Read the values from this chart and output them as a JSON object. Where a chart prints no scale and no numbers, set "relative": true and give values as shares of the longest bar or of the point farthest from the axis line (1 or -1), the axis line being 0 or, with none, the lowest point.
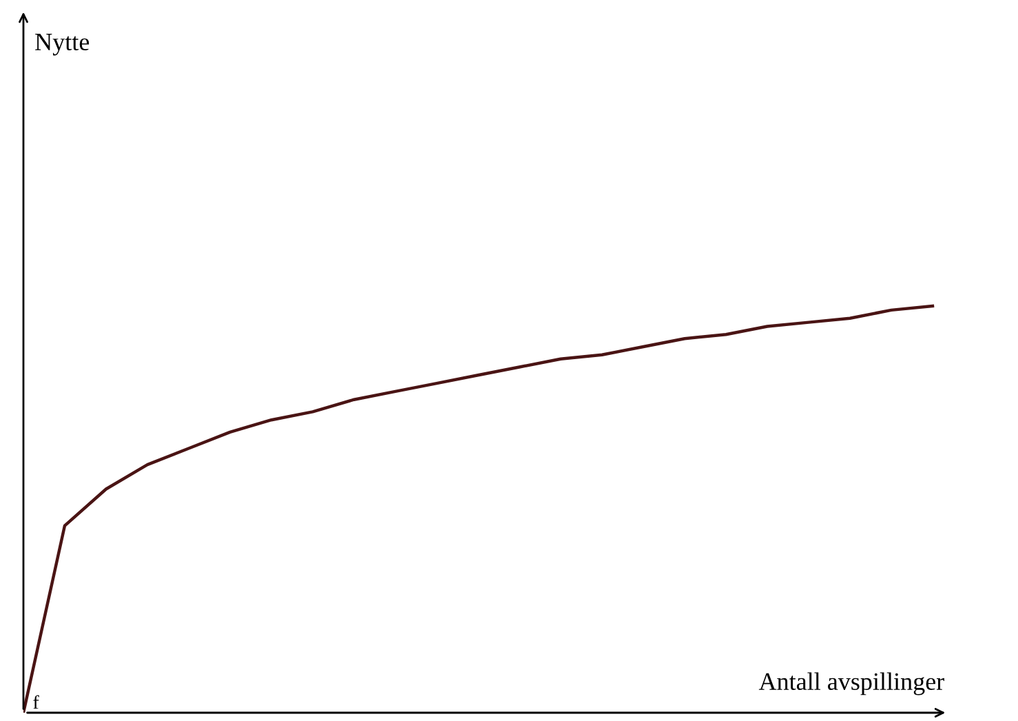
{
  "chart_data": {
    "type": "line",
    "relative": true,
    "xlabel": "Antall avspillinger",
    "annotations": [
      "f",
      "Nytte"
    ],
    "categories": [
      null,
      null,
      null,
      null,
      null,
      null,
      null,
      null,
      null,
      null,
      null,
      null,
      null,
      null,
      null,
      null,
      null,
      null,
      null,
      null,
      null,
      null,
      null
    ],
    "series": [
      {
        "color": "#4a1414",
        "values": [
          0,
          0.46,
          0.55,
          0.61,
          0.65,
          0.69,
          0.72,
          0.74,
          0.77,
          0.79,
          0.81,
          0.83,
          0.85,
          0.87,
          0.88,
          0.9,
          0.92,
          0.93,
          0.95,
          0.96,
          0.97,
          0.99,
          1.0
        ]
      }
    ],
    "marker": "none",
    "line_style": "solid"
  }
}
